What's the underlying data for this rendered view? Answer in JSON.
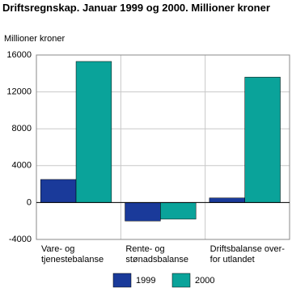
{
  "chart_data": {
    "type": "bar",
    "title": "Driftsregnskap. Januar 1999 og 2000. Millioner kroner",
    "y_label": "Millioner kroner",
    "categories": [
      [
        "Vare- og",
        "tjenestebalanse"
      ],
      [
        "Rente- og",
        "stønadsbalanse"
      ],
      [
        "Driftsbalanse over-",
        "for utlandet"
      ]
    ],
    "series": [
      {
        "name": "1999",
        "color": "#1a3a9a",
        "values": [
          2500,
          -2000,
          500
        ]
      },
      {
        "name": "2000",
        "color": "#0aa39a",
        "values": [
          15300,
          -1800,
          13600
        ]
      }
    ],
    "ylim": [
      -4000,
      16000
    ],
    "yticks": [
      -4000,
      0,
      4000,
      8000,
      12000,
      16000
    ],
    "grid": true
  }
}
